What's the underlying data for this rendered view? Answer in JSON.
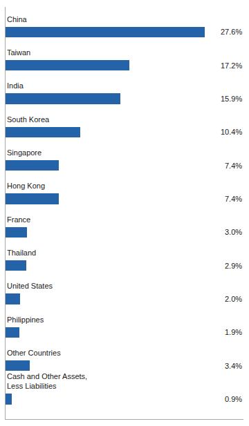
{
  "chart_data": {
    "type": "bar",
    "orientation": "horizontal",
    "categories": [
      "China",
      "Taiwan",
      "India",
      "South Korea",
      "Singapore",
      "Hong Kong",
      "France",
      "Thailand",
      "United States",
      "Philippines",
      "Other Countries",
      "Cash and Other Assets,\nLess Liabilities"
    ],
    "values": [
      27.6,
      17.2,
      15.9,
      10.4,
      7.4,
      7.4,
      3.0,
      2.9,
      2.0,
      1.9,
      3.4,
      0.9
    ],
    "value_labels": [
      "27.6%",
      "17.2%",
      "15.9%",
      "10.4%",
      "7.4%",
      "7.4%",
      "3.0%",
      "2.9%",
      "2.0%",
      "1.9%",
      "3.4%",
      "0.9%"
    ],
    "color": "#2563a8",
    "xlim": [
      0,
      33
    ],
    "data_labels": true,
    "tick_labels": false,
    "grid": false
  }
}
